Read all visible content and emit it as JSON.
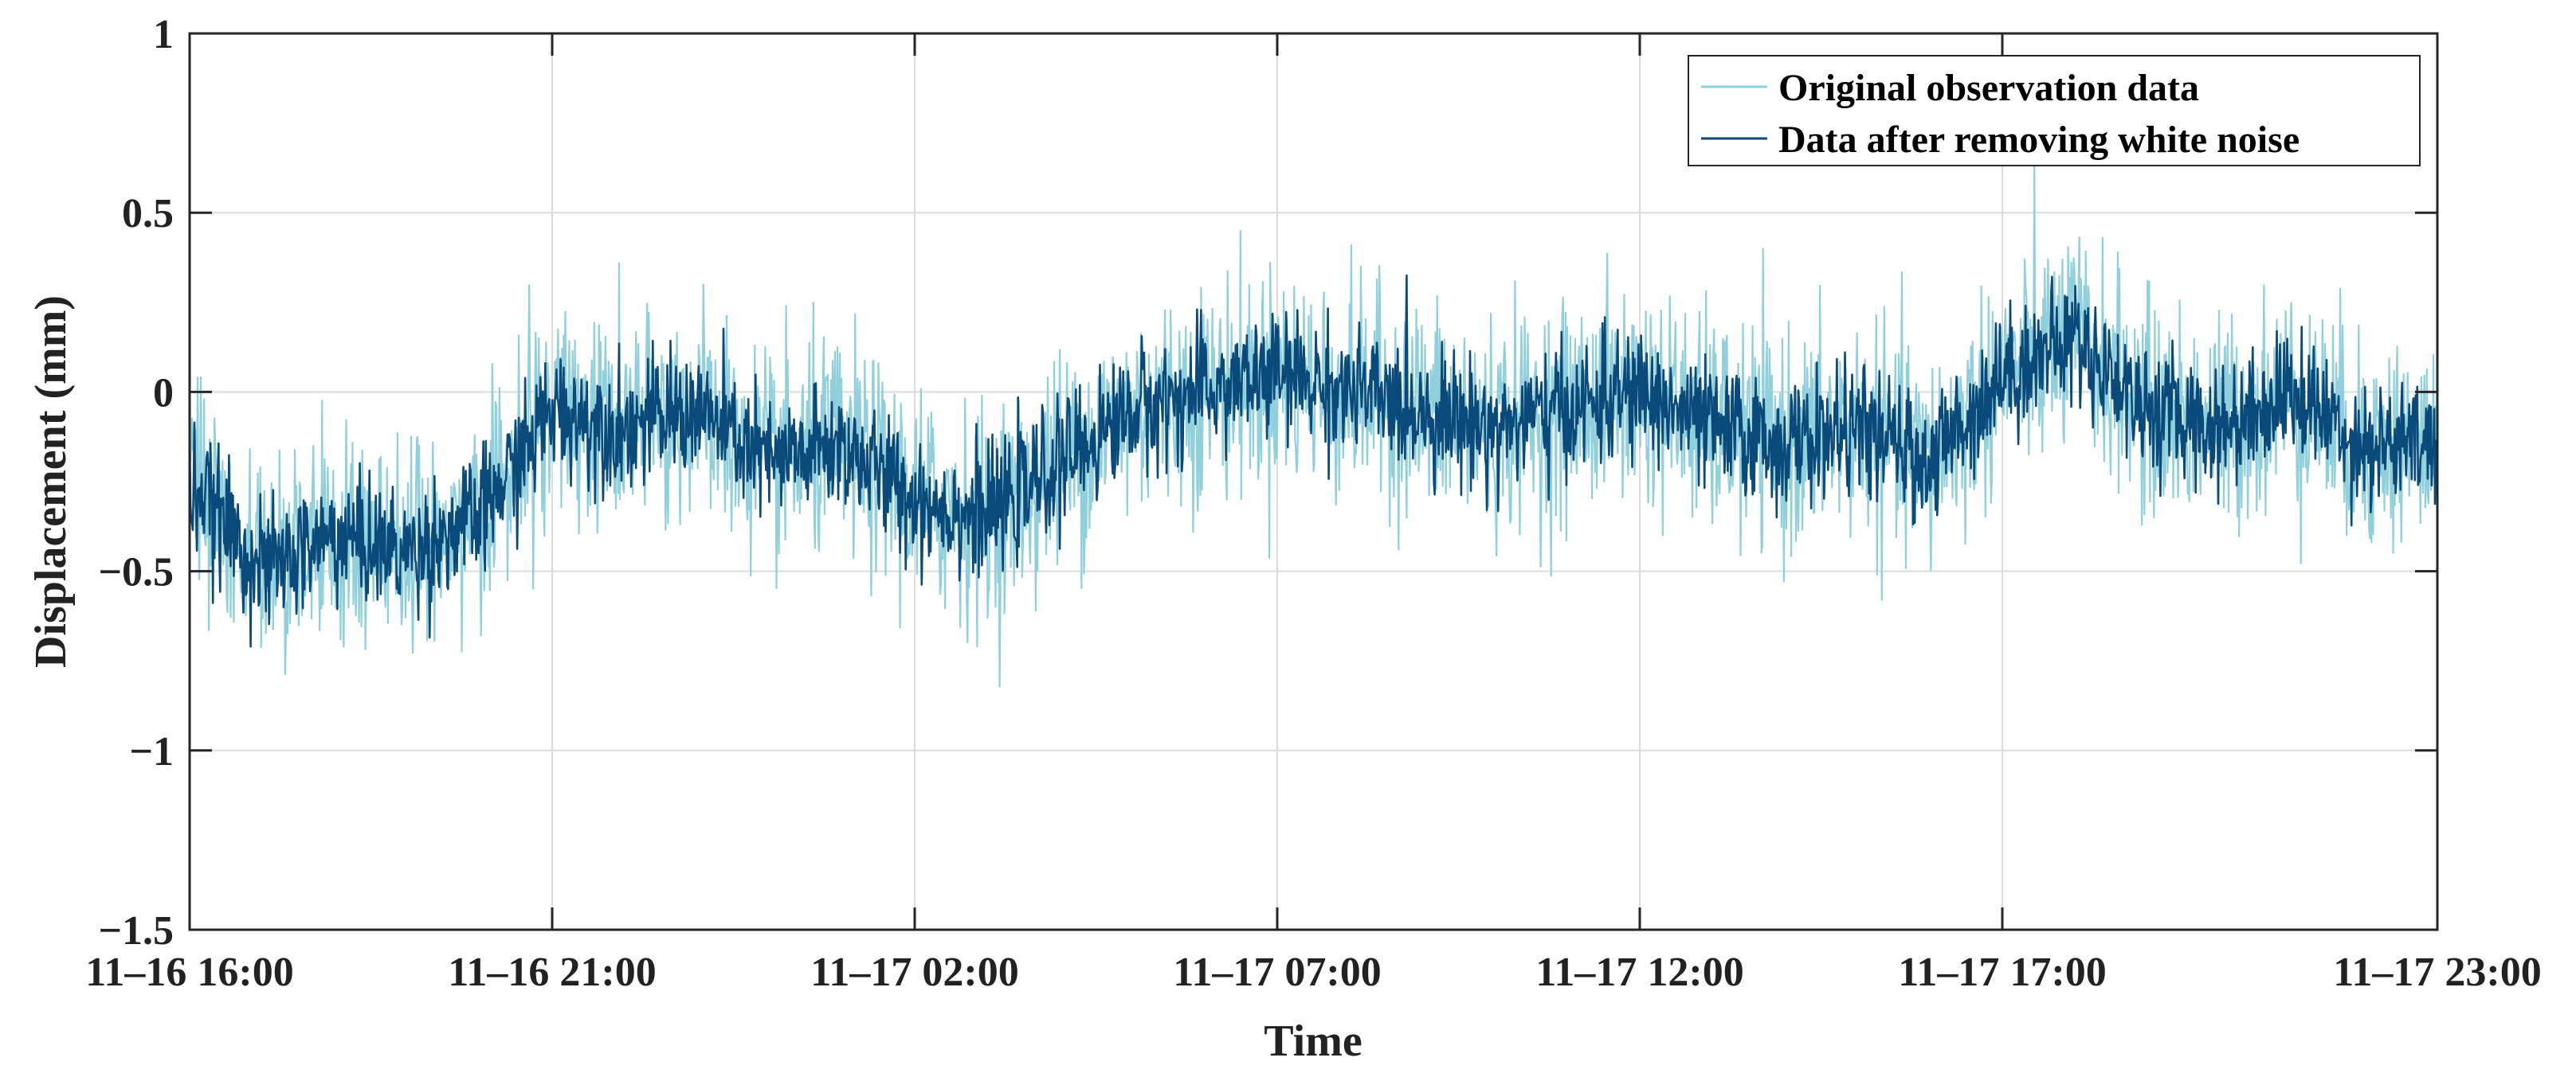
{
  "chart_data": {
    "type": "line",
    "xlabel": "Time",
    "ylabel": "Displacement (mm)",
    "ylim": [
      -1.5,
      1
    ],
    "yticks": [
      -1.5,
      -1,
      -0.5,
      0,
      0.5,
      1
    ],
    "ytick_labels": [
      "−1.5",
      "−1",
      "−0.5",
      "0",
      "0.5",
      "1"
    ],
    "xlim": [
      "11-16 16:00",
      "11-17 23:00"
    ],
    "xticks": [
      "11-16 16:00",
      "11-16 21:00",
      "11-17 02:00",
      "11-17 07:00",
      "11-17 12:00",
      "11-17 17:00",
      "11-17 23:00"
    ],
    "xtick_labels": [
      "11–16 16:00",
      "11–16 21:00",
      "11–17 02:00",
      "11–17 07:00",
      "11–17 12:00",
      "11–17 17:00",
      "11–17 23:00"
    ],
    "grid": true,
    "legend_position": "top-right",
    "x": [
      "11-16 16:00",
      "11-16 17:00",
      "11-16 18:00",
      "11-16 19:00",
      "11-16 20:00",
      "11-16 21:00",
      "11-16 22:00",
      "11-16 23:00",
      "11-17 00:00",
      "11-17 01:00",
      "11-17 02:00",
      "11-17 03:00",
      "11-17 04:00",
      "11-17 05:00",
      "11-17 06:00",
      "11-17 07:00",
      "11-17 08:00",
      "11-17 09:00",
      "11-17 10:00",
      "11-17 11:00",
      "11-17 12:00",
      "11-17 13:00",
      "11-17 14:00",
      "11-17 15:00",
      "11-17 16:00",
      "11-17 17:00",
      "11-17 18:00",
      "11-17 19:00",
      "11-17 20:00",
      "11-17 21:00",
      "11-17 22:00",
      "11-17 23:00"
    ],
    "series": [
      {
        "name": "Original observation data",
        "color": "#8fd0dc",
        "amplitude": 0.3,
        "values": [
          -0.25,
          -0.5,
          -0.4,
          -0.45,
          -0.35,
          -0.05,
          -0.1,
          -0.05,
          -0.2,
          -0.15,
          -0.3,
          -0.35,
          -0.2,
          -0.05,
          0.0,
          0.05,
          0.0,
          -0.05,
          -0.1,
          -0.05,
          0.0,
          -0.1,
          -0.15,
          -0.1,
          -0.2,
          0.05,
          0.15,
          -0.05,
          -0.1,
          0.0,
          -0.15,
          -0.15
        ]
      },
      {
        "name": "Data after removing  white noise",
        "color": "#0a4a7a",
        "amplitude": 0.17,
        "values": [
          -0.25,
          -0.5,
          -0.4,
          -0.45,
          -0.35,
          -0.05,
          -0.1,
          -0.05,
          -0.2,
          -0.15,
          -0.3,
          -0.35,
          -0.2,
          -0.05,
          0.0,
          0.05,
          0.0,
          -0.05,
          -0.1,
          -0.05,
          0.0,
          -0.1,
          -0.15,
          -0.1,
          -0.2,
          0.05,
          0.15,
          -0.05,
          -0.1,
          0.0,
          -0.15,
          -0.15
        ]
      }
    ]
  }
}
